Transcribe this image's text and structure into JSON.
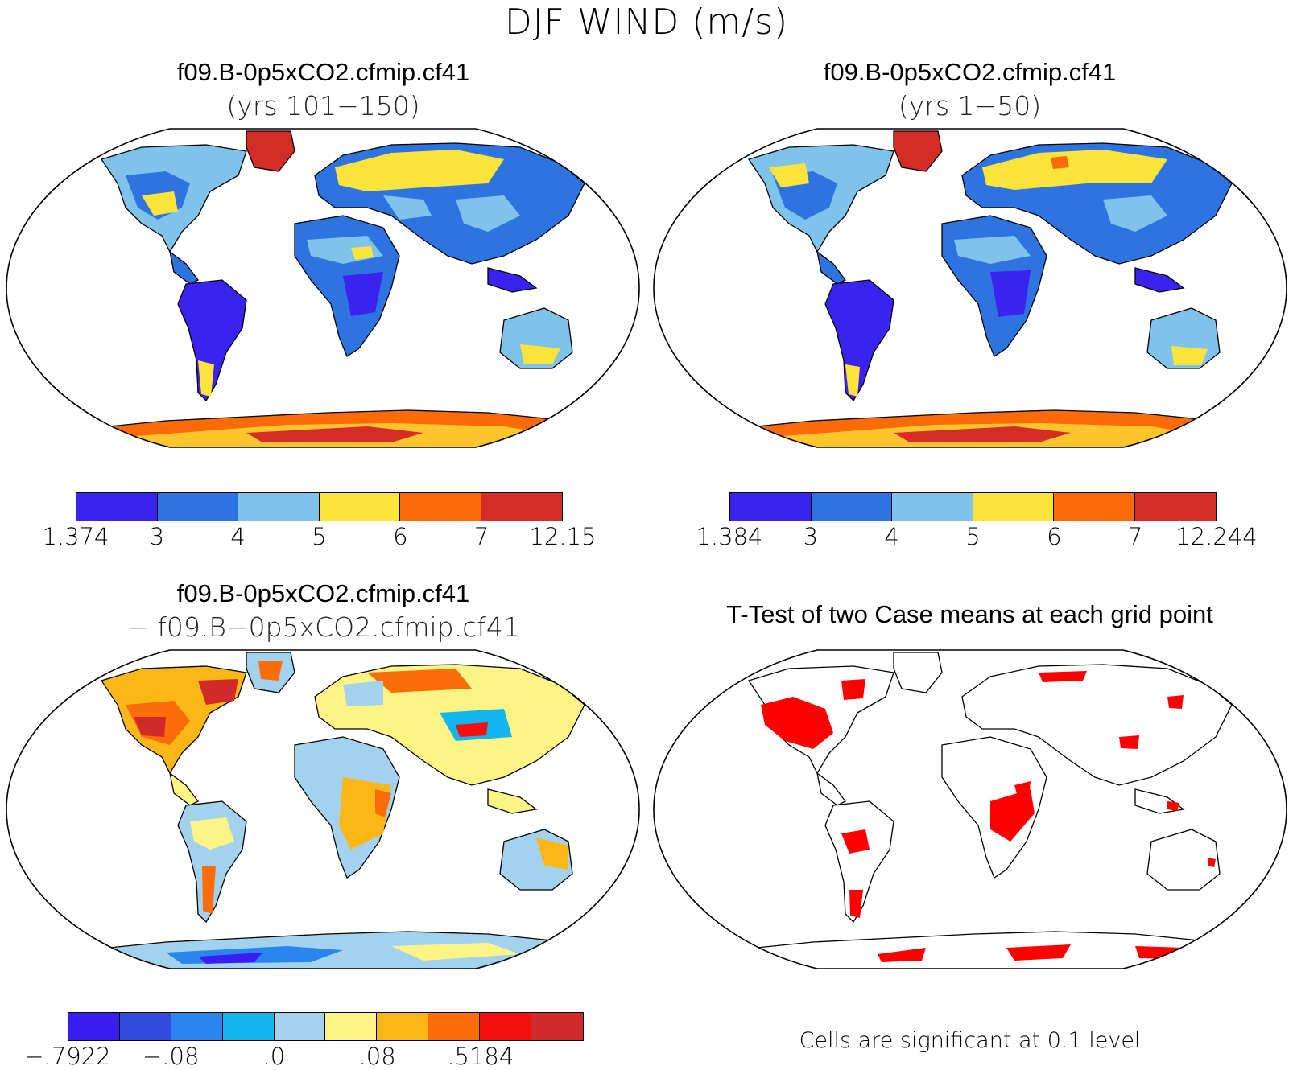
{
  "title": "DJF WIND (m/s)",
  "panels": [
    {
      "title": "f09.B-0p5xCO2.cfmip.cf41",
      "subtitle": "(yrs 101−150)",
      "colorbar": {
        "colors": [
          "#3a22ef",
          "#2e74e0",
          "#7fc3ea",
          "#fde43a",
          "#fd6a08",
          "#d62c28"
        ],
        "labels": [
          "1.374",
          "3",
          "4",
          "5",
          "6",
          "7",
          "12.15"
        ]
      }
    },
    {
      "title": "f09.B-0p5xCO2.cfmip.cf41",
      "subtitle": "(yrs 1−50)",
      "colorbar": {
        "colors": [
          "#3a22ef",
          "#2e74e0",
          "#7fc3ea",
          "#fde43a",
          "#fd6a08",
          "#d62c28"
        ],
        "labels": [
          "1.384",
          "3",
          "4",
          "5",
          "6",
          "7",
          "12.244"
        ]
      }
    },
    {
      "title": "f09.B-0p5xCO2.cfmip.cf41",
      "subtitle": "− f09.B−0p5xCO2.cfmip.cf41",
      "colorbar": {
        "colors": [
          "#3a1df0",
          "#2e4edb",
          "#2a85ec",
          "#12b6ee",
          "#a2d2ee",
          "#fdf485",
          "#fbb716",
          "#fb6d08",
          "#f51010",
          "#d02a2a"
        ],
        "labels": [
          "−.7922",
          "−.08",
          ".0",
          ".08",
          ".5184"
        ]
      }
    },
    {
      "title": "T-Test of two Case means at each grid point",
      "note": "Cells are significant at 0.1 level",
      "sig_color": "#ff0000"
    }
  ]
}
